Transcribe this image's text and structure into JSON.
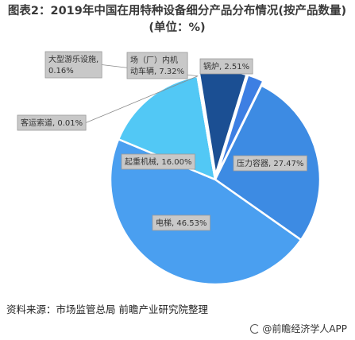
{
  "header": {
    "title_prefix": "图表2：",
    "title": "2019年中国在用特种设备细分产品分布情况(按产品数量)(单位：%)"
  },
  "chart_data": {
    "type": "pie",
    "title": "2019年中国在用特种设备细分产品分布情况(按产品数量)(单位：%)",
    "unit": "%",
    "slices": [
      {
        "name": "锅炉",
        "value": 2.51,
        "label": "锅炉, 2.51%",
        "color": "#3d7fe3"
      },
      {
        "name": "压力容器",
        "value": 27.47,
        "label": "压力容器, 27.47%",
        "color": "#3d8be3"
      },
      {
        "name": "电梯",
        "value": 46.53,
        "label": "电梯, 46.53%",
        "color": "#4a9ff0"
      },
      {
        "name": "起重机械",
        "value": 16.0,
        "label": "起重机械, 16.00%",
        "color": "#52c8f5"
      },
      {
        "name": "客运索道",
        "value": 0.01,
        "label": "客运索道, 0.01%",
        "color": "#3aa0e0"
      },
      {
        "name": "大型游乐设施",
        "value": 0.16,
        "label": "大型游乐设施, 0.16%",
        "color": "#2a70c0"
      },
      {
        "name": "场（厂）内机动车辆",
        "value": 7.32,
        "label": "场（厂）内机动车辆, 7.32%",
        "color": "#1b4f93"
      }
    ]
  },
  "footer": {
    "source": "资料来源：市场监管总局 前瞻产业研究院整理",
    "brand": "@前瞻经济学人APP"
  }
}
